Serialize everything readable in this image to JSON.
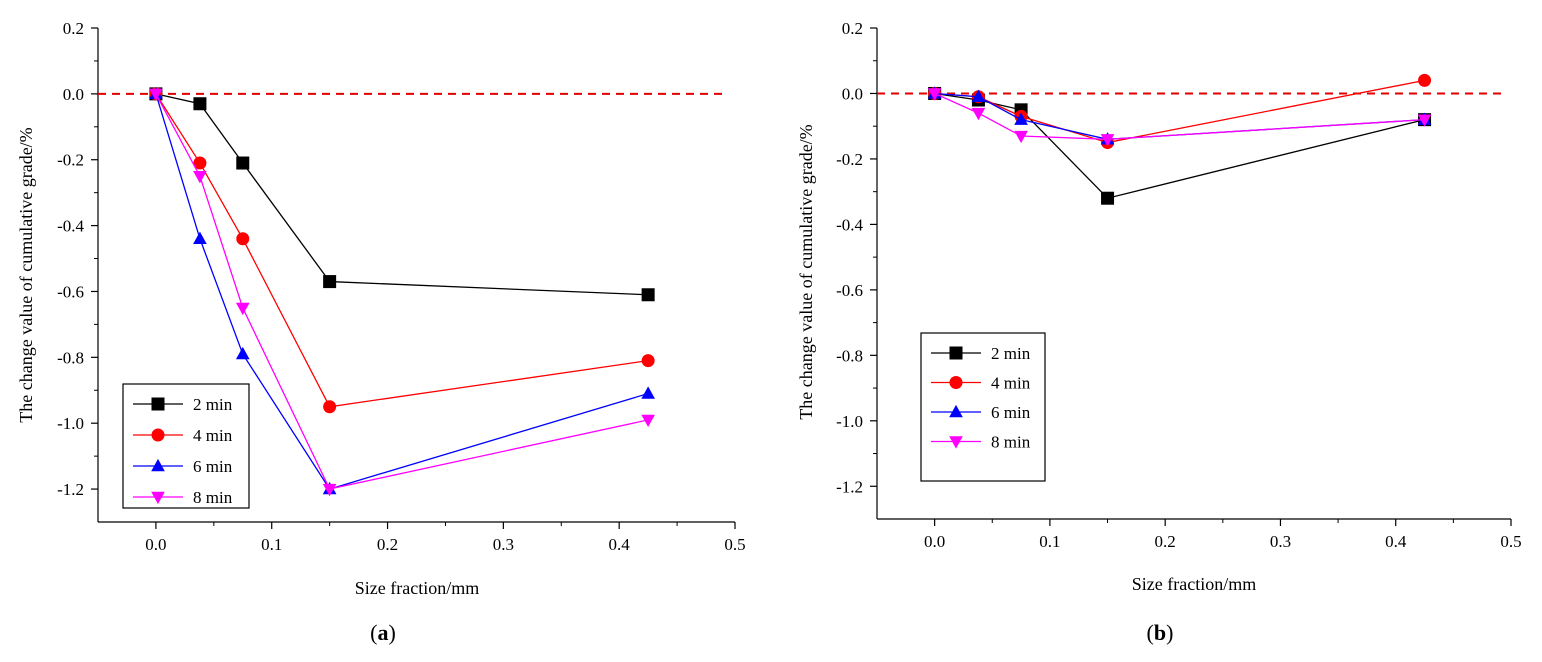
{
  "chart_data": [
    {
      "type": "line",
      "panel_label": "a",
      "xlabel": "Size fraction/mm",
      "ylabel": "The change value of cumulative grade/%",
      "xlim": [
        -0.05,
        0.5
      ],
      "ylim": [
        -1.3,
        0.2
      ],
      "xticks": [
        0.0,
        0.1,
        0.2,
        0.3,
        0.4,
        0.5
      ],
      "yticks": [
        0.2,
        0.0,
        -0.2,
        -0.4,
        -0.6,
        -0.8,
        -1.0,
        -1.2
      ],
      "x": [
        0.0,
        0.038,
        0.075,
        0.15,
        0.425
      ],
      "reference_line": {
        "y": 0.0,
        "color": "#e00000",
        "style": "dashed"
      },
      "legend_position": "bottom-left",
      "grid": false,
      "series": [
        {
          "name": "2 min",
          "color": "#000000",
          "marker": "square",
          "values": [
            0.0,
            -0.03,
            -0.21,
            -0.57,
            -0.61
          ]
        },
        {
          "name": "4 min",
          "color": "#ff0000",
          "marker": "circle",
          "values": [
            0.0,
            -0.21,
            -0.44,
            -0.95,
            -0.81
          ]
        },
        {
          "name": "6 min",
          "color": "#0000ff",
          "marker": "triangle-up",
          "values": [
            0.0,
            -0.44,
            -0.79,
            -1.2,
            -0.91
          ]
        },
        {
          "name": "8 min",
          "color": "#ff00ff",
          "marker": "triangle-down",
          "values": [
            0.0,
            -0.25,
            -0.65,
            -1.2,
            -0.99
          ]
        }
      ]
    },
    {
      "type": "line",
      "panel_label": "b",
      "xlabel": "Size fraction/mm",
      "ylabel": "The change value of cumulative grade/%",
      "xlim": [
        -0.05,
        0.5
      ],
      "ylim": [
        -1.3,
        0.2
      ],
      "xticks": [
        0.0,
        0.1,
        0.2,
        0.3,
        0.4,
        0.5
      ],
      "yticks": [
        0.2,
        0.0,
        -0.2,
        -0.4,
        -0.6,
        -0.8,
        -1.0,
        -1.2
      ],
      "x": [
        0.0,
        0.038,
        0.075,
        0.15,
        0.425
      ],
      "reference_line": {
        "y": 0.0,
        "color": "#e00000",
        "style": "dashed"
      },
      "legend_position": "bottom-left",
      "grid": false,
      "series": [
        {
          "name": "2 min",
          "color": "#000000",
          "marker": "square",
          "values": [
            0.0,
            -0.02,
            -0.05,
            -0.32,
            -0.08
          ]
        },
        {
          "name": "4 min",
          "color": "#ff0000",
          "marker": "circle",
          "values": [
            0.0,
            -0.01,
            -0.07,
            -0.15,
            0.04
          ]
        },
        {
          "name": "6 min",
          "color": "#0000ff",
          "marker": "triangle-up",
          "values": [
            0.0,
            -0.01,
            -0.08,
            -0.14,
            -0.08
          ]
        },
        {
          "name": "8 min",
          "color": "#ff00ff",
          "marker": "triangle-down",
          "values": [
            0.0,
            -0.06,
            -0.13,
            -0.14,
            -0.08
          ]
        }
      ]
    }
  ]
}
